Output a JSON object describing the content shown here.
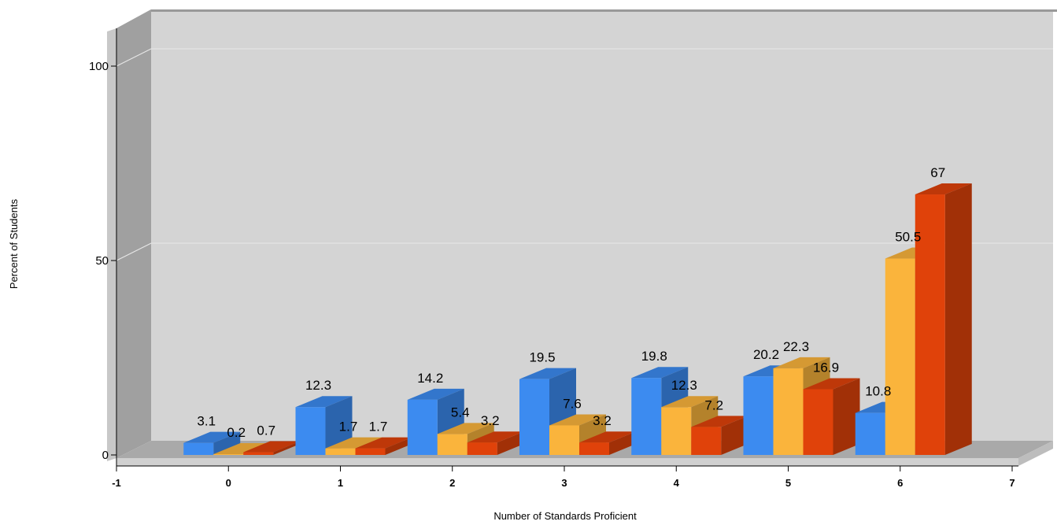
{
  "chart_data": {
    "type": "bar",
    "title": "",
    "xlabel": "Number of Standards Proficient",
    "ylabel": "Percent of Students",
    "x_ticks": [
      "-1",
      "0",
      "1",
      "2",
      "3",
      "4",
      "5",
      "6",
      "7"
    ],
    "y_ticks": [
      "0",
      "50",
      "100"
    ],
    "categories": [
      0,
      1,
      2,
      3,
      4,
      5,
      6
    ],
    "xlim": [
      -1,
      7
    ],
    "ylim": [
      0,
      105
    ],
    "grid": true,
    "three_d": true,
    "series": [
      {
        "color": "#3c8bf0",
        "values": [
          3.1,
          12.3,
          14.2,
          19.5,
          19.8,
          20.2,
          10.8
        ]
      },
      {
        "color": "#fab43c",
        "values": [
          0.2,
          1.7,
          5.4,
          7.6,
          12.3,
          22.3,
          50.5
        ]
      },
      {
        "color": "#e0420a",
        "values": [
          0.7,
          1.7,
          3.2,
          3.2,
          7.2,
          16.9,
          67
        ]
      }
    ]
  }
}
